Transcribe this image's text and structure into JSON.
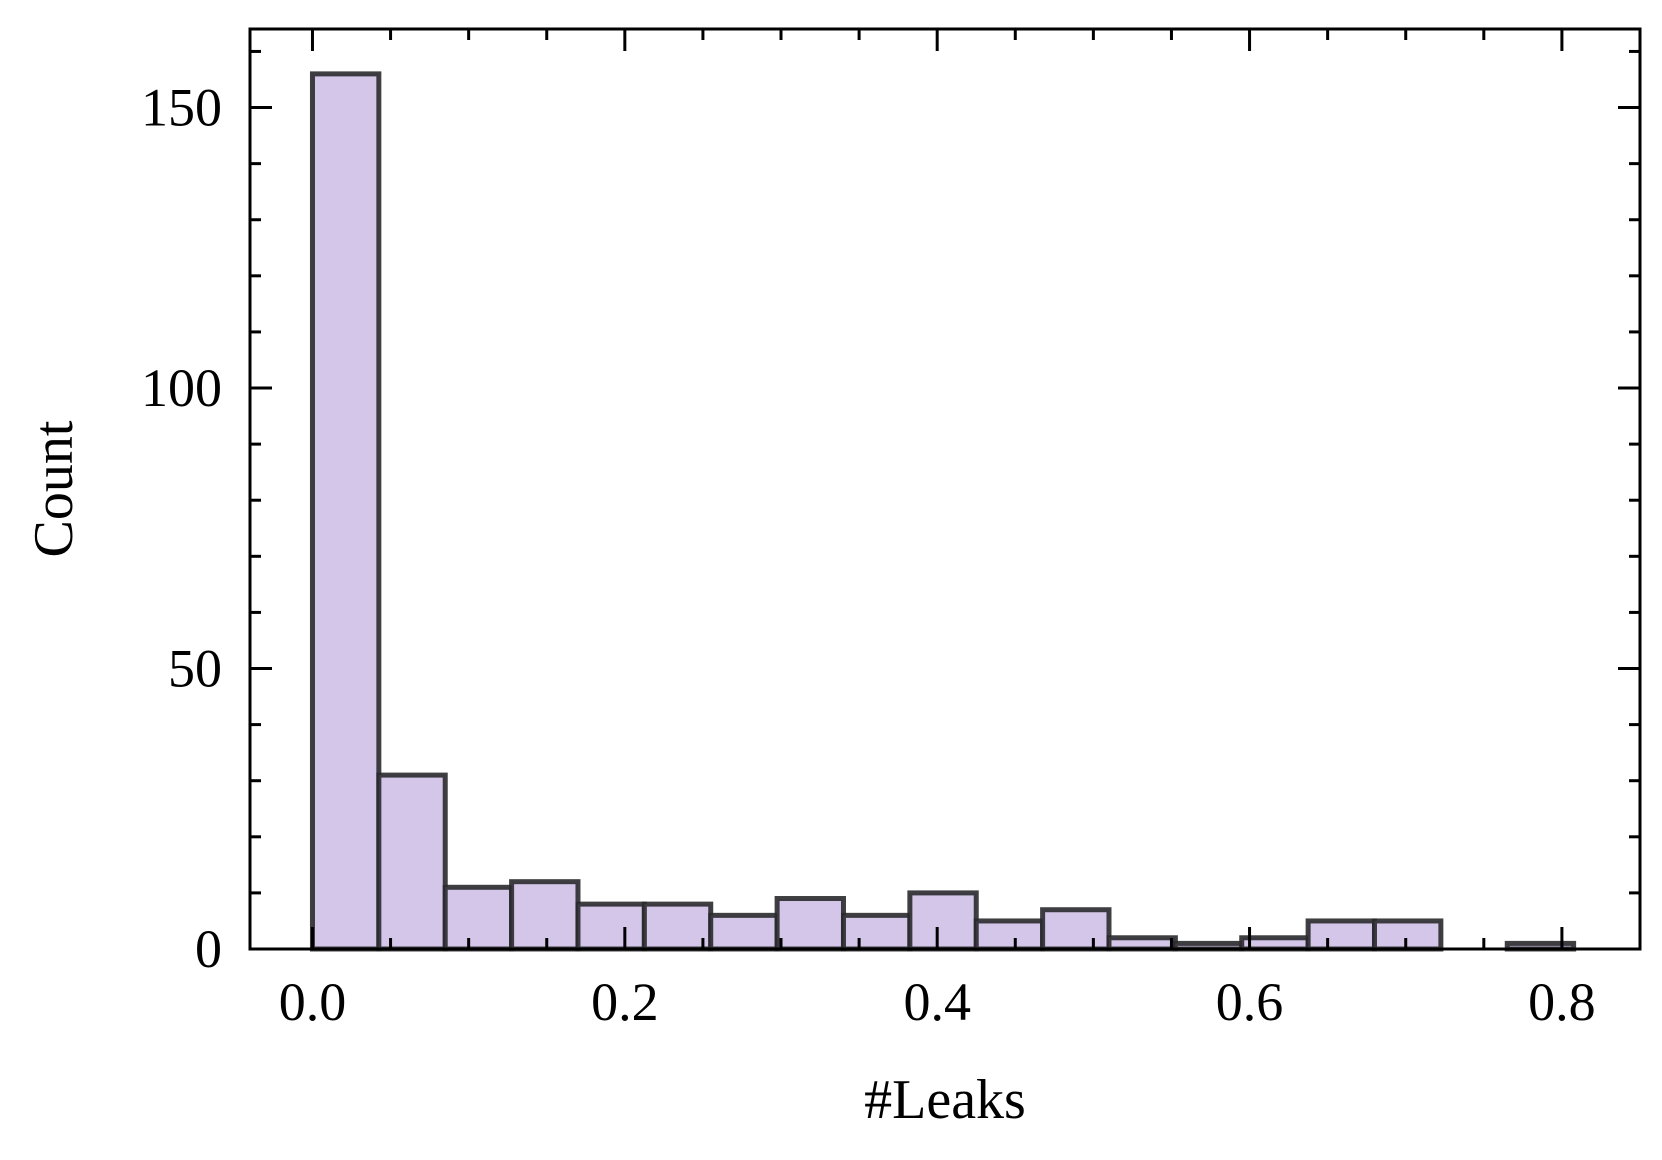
{
  "chart_data": {
    "type": "bar",
    "subtype": "histogram",
    "xlabel": "#Leaks",
    "ylabel": "Count",
    "xlim": [
      -0.04,
      0.85
    ],
    "ylim": [
      0,
      164
    ],
    "x_ticks": [
      0.0,
      0.2,
      0.4,
      0.6,
      0.8
    ],
    "x_tick_labels": [
      "0.0",
      "0.2",
      "0.4",
      "0.6",
      "0.8"
    ],
    "y_ticks": [
      0,
      50,
      100,
      150
    ],
    "y_tick_labels": [
      "0",
      "50",
      "100",
      "150"
    ],
    "y_minor_step": 10,
    "bin_edges": [
      0.0,
      0.0425,
      0.085,
      0.1275,
      0.17,
      0.2125,
      0.255,
      0.2975,
      0.34,
      0.3825,
      0.425,
      0.4675,
      0.51,
      0.5525,
      0.595,
      0.6375,
      0.68,
      0.7225,
      0.765,
      0.8075
    ],
    "counts": [
      156,
      31,
      11,
      12,
      8,
      8,
      6,
      9,
      6,
      10,
      5,
      7,
      2,
      1,
      2,
      5,
      5,
      0,
      1
    ],
    "bar_fill": "#d4c6e8",
    "bar_edge": "#2a2a2e",
    "tick_direction": "in",
    "grid": false,
    "legend": "none"
  }
}
